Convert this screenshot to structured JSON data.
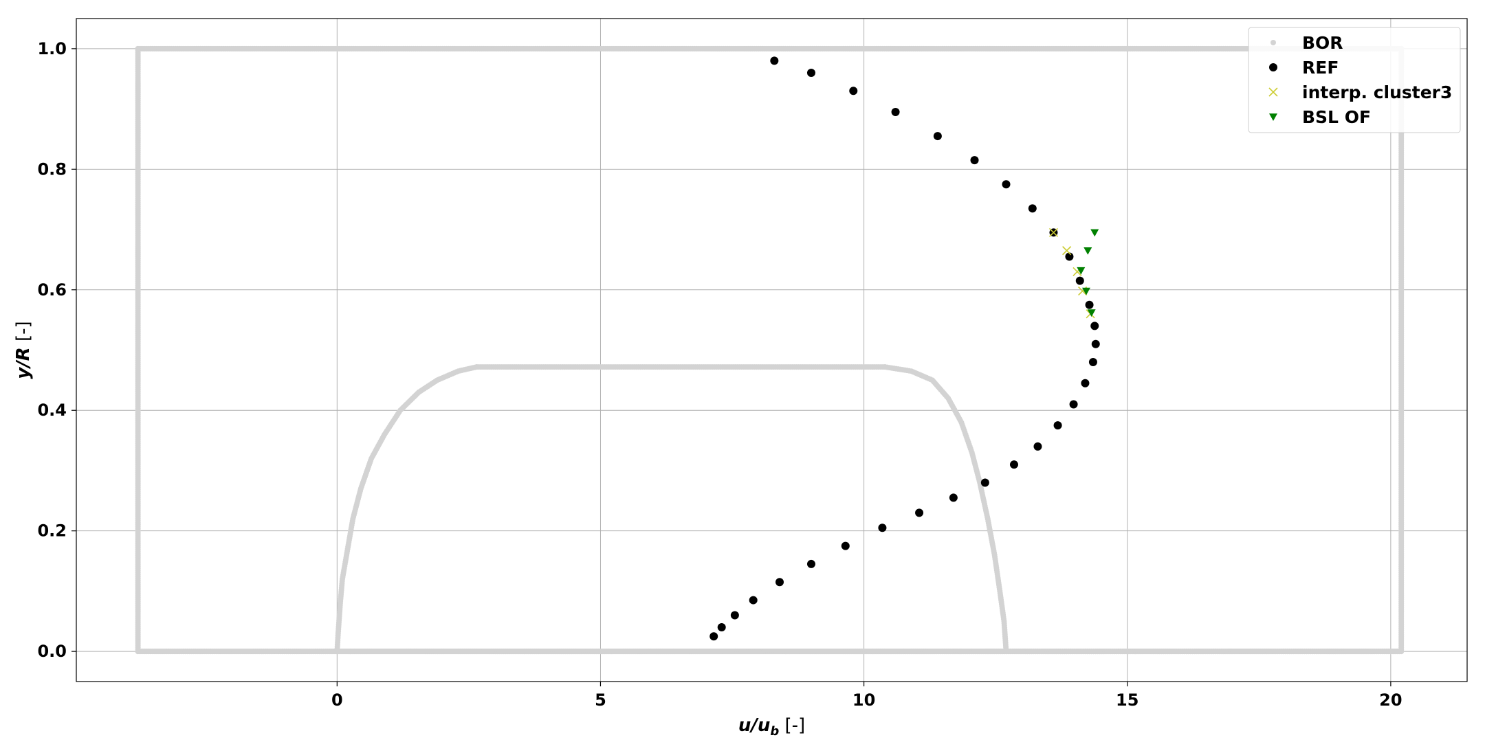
{
  "chart_data": {
    "type": "scatter",
    "xlabel_parts": {
      "var": "u/u",
      "sub": "b",
      "unit": " [-]"
    },
    "ylabel_parts": {
      "var": "y/R",
      "unit": " [-]"
    },
    "xlim": [
      -4.95,
      21.45
    ],
    "ylim": [
      -0.05,
      1.05
    ],
    "xticks": [
      0,
      5,
      10,
      15,
      20
    ],
    "yticks": [
      0.0,
      0.2,
      0.4,
      0.6,
      0.8,
      1.0
    ],
    "xtick_labels": [
      "0",
      "5",
      "10",
      "15",
      "20"
    ],
    "ytick_labels": [
      "0.0",
      "0.2",
      "0.4",
      "0.6",
      "0.8",
      "1.0"
    ],
    "grid": true,
    "legend_position": "top-right",
    "series": [
      {
        "name": "BOR",
        "marker": "circle",
        "color": "#d3d3d3",
        "points": [
          [
            -3.78,
            0.0
          ],
          [
            -3.78,
            0.1
          ],
          [
            -3.78,
            0.2
          ],
          [
            -3.78,
            0.3
          ],
          [
            -3.78,
            0.4
          ],
          [
            -3.78,
            0.5
          ],
          [
            -3.78,
            0.6
          ],
          [
            -3.78,
            0.7
          ],
          [
            -3.78,
            0.8
          ],
          [
            -3.78,
            0.9
          ],
          [
            -3.78,
            1.0
          ],
          [
            -3.78,
            1.0
          ],
          [
            -2,
            1.0
          ],
          [
            0,
            1.0
          ],
          [
            2,
            1.0
          ],
          [
            4,
            1.0
          ],
          [
            6,
            1.0
          ],
          [
            8,
            1.0
          ],
          [
            10,
            1.0
          ],
          [
            12,
            1.0
          ],
          [
            14,
            1.0
          ],
          [
            16,
            1.0
          ],
          [
            18,
            1.0
          ],
          [
            20.2,
            1.0
          ],
          [
            20.2,
            1.0
          ],
          [
            20.2,
            0.9
          ],
          [
            20.2,
            0.8
          ],
          [
            20.2,
            0.7
          ],
          [
            20.2,
            0.6
          ],
          [
            20.2,
            0.5
          ],
          [
            20.2,
            0.4
          ],
          [
            20.2,
            0.3
          ],
          [
            20.2,
            0.2
          ],
          [
            20.2,
            0.1
          ],
          [
            20.2,
            0.0
          ],
          [
            -3.78,
            0.0
          ],
          [
            -3.0,
            0.0
          ],
          [
            -2.0,
            0.0
          ],
          [
            -1.0,
            0.0
          ],
          [
            -0.02,
            0.0
          ],
          [
            12.7,
            0.0
          ],
          [
            14,
            0.0
          ],
          [
            15,
            0.0
          ],
          [
            16,
            0.0
          ],
          [
            17,
            0.0
          ],
          [
            18,
            0.0
          ],
          [
            19,
            0.0
          ],
          [
            20.2,
            0.0
          ],
          [
            0,
            0.0
          ],
          [
            0.02,
            0.03
          ],
          [
            0.06,
            0.08
          ],
          [
            0.1,
            0.12
          ],
          [
            0.2,
            0.17
          ],
          [
            0.3,
            0.22
          ],
          [
            0.45,
            0.27
          ],
          [
            0.65,
            0.32
          ],
          [
            0.9,
            0.36
          ],
          [
            1.2,
            0.4
          ],
          [
            1.55,
            0.43
          ],
          [
            1.9,
            0.45
          ],
          [
            2.3,
            0.465
          ],
          [
            2.65,
            0.472
          ],
          [
            2.65,
            0.472
          ],
          [
            4,
            0.472
          ],
          [
            5,
            0.472
          ],
          [
            6,
            0.472
          ],
          [
            7,
            0.472
          ],
          [
            8,
            0.472
          ],
          [
            9,
            0.472
          ],
          [
            10.4,
            0.472
          ],
          [
            10.4,
            0.472
          ],
          [
            10.9,
            0.465
          ],
          [
            11.3,
            0.45
          ],
          [
            11.6,
            0.42
          ],
          [
            11.85,
            0.38
          ],
          [
            12.05,
            0.33
          ],
          [
            12.2,
            0.28
          ],
          [
            12.35,
            0.22
          ],
          [
            12.48,
            0.16
          ],
          [
            12.58,
            0.1
          ],
          [
            12.66,
            0.05
          ],
          [
            12.7,
            0.0
          ]
        ]
      },
      {
        "name": "REF",
        "marker": "circle",
        "color": "#000000",
        "points": [
          [
            8.3,
            0.98
          ],
          [
            9.0,
            0.96
          ],
          [
            9.8,
            0.93
          ],
          [
            10.6,
            0.895
          ],
          [
            11.4,
            0.855
          ],
          [
            12.1,
            0.815
          ],
          [
            12.7,
            0.775
          ],
          [
            13.2,
            0.735
          ],
          [
            13.6,
            0.695
          ],
          [
            13.9,
            0.655
          ],
          [
            14.1,
            0.615
          ],
          [
            14.28,
            0.575
          ],
          [
            14.38,
            0.54
          ],
          [
            14.4,
            0.51
          ],
          [
            14.35,
            0.48
          ],
          [
            14.2,
            0.445
          ],
          [
            13.98,
            0.41
          ],
          [
            13.68,
            0.375
          ],
          [
            13.3,
            0.34
          ],
          [
            12.85,
            0.31
          ],
          [
            12.3,
            0.28
          ],
          [
            11.7,
            0.255
          ],
          [
            11.05,
            0.23
          ],
          [
            10.35,
            0.205
          ],
          [
            9.65,
            0.175
          ],
          [
            9.0,
            0.145
          ],
          [
            8.4,
            0.115
          ],
          [
            7.9,
            0.085
          ],
          [
            7.55,
            0.06
          ],
          [
            7.3,
            0.04
          ],
          [
            7.15,
            0.025
          ]
        ]
      },
      {
        "name": "interp. cluster3",
        "marker": "x",
        "color": "#cccc33",
        "points": [
          [
            13.6,
            0.695
          ],
          [
            13.85,
            0.665
          ],
          [
            14.05,
            0.63
          ],
          [
            14.15,
            0.598
          ],
          [
            14.3,
            0.56
          ]
        ]
      },
      {
        "name": "BSL OF",
        "marker": "triangle-down",
        "color": "#008000",
        "points": [
          [
            14.38,
            0.695
          ],
          [
            14.25,
            0.665
          ],
          [
            14.12,
            0.632
          ],
          [
            14.22,
            0.598
          ],
          [
            14.32,
            0.562
          ]
        ]
      }
    ]
  }
}
